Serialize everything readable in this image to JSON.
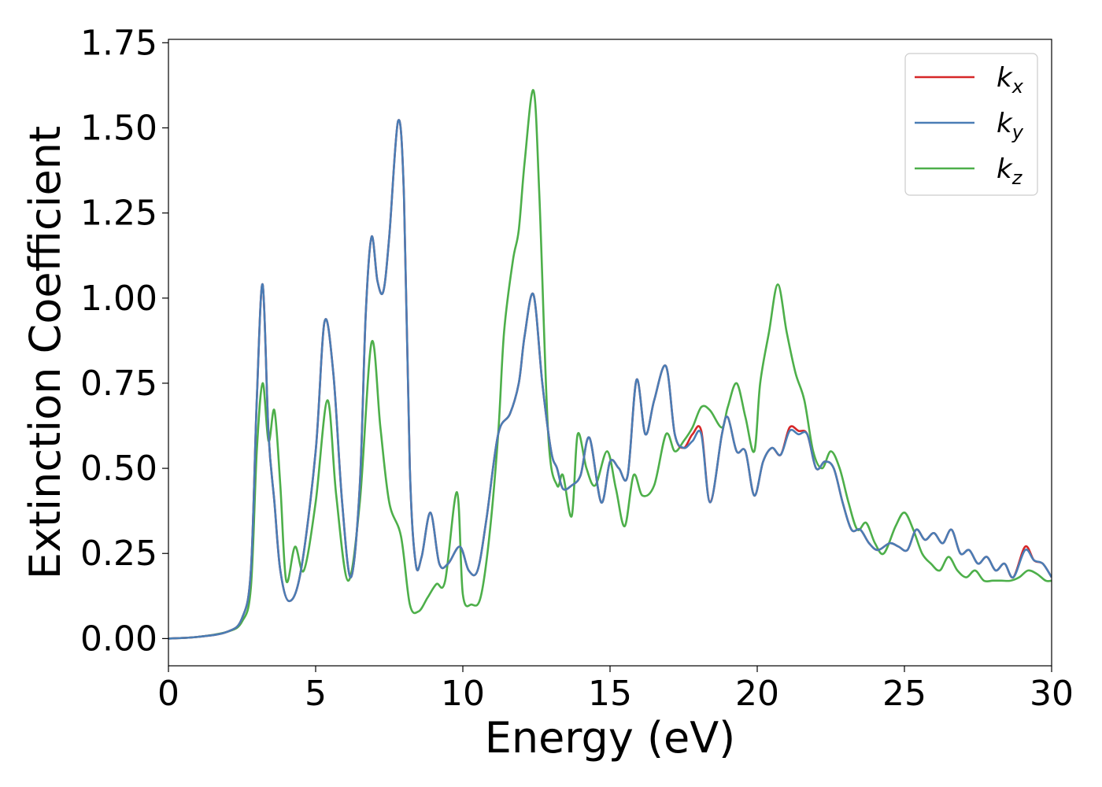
{
  "chart_data": {
    "type": "line",
    "title": "",
    "xlabel": "Energy (eV)",
    "ylabel": "Extinction Coefficient",
    "xlim": [
      0,
      30
    ],
    "ylim": [
      -0.08,
      1.76
    ],
    "xticks": [
      0,
      5,
      10,
      15,
      20,
      25,
      30
    ],
    "yticks": [
      0.0,
      0.25,
      0.5,
      0.75,
      1.0,
      1.25,
      1.5,
      1.75
    ],
    "xtick_labels": [
      "0",
      "5",
      "10",
      "15",
      "20",
      "25",
      "30"
    ],
    "ytick_labels": [
      "0.00",
      "0.25",
      "0.50",
      "0.75",
      "1.00",
      "1.25",
      "1.50",
      "1.75"
    ],
    "grid": false,
    "legend_position": "top-right",
    "series": [
      {
        "name": "k_x",
        "label_base": "k",
        "label_sub": "x",
        "color": "#d62728",
        "x": [
          0,
          1,
          2,
          2.5,
          2.8,
          3.0,
          3.2,
          3.4,
          3.6,
          3.8,
          4.1,
          4.5,
          5.0,
          5.3,
          5.6,
          5.9,
          6.2,
          6.5,
          6.7,
          6.9,
          7.1,
          7.3,
          7.5,
          7.8,
          8.0,
          8.2,
          8.4,
          8.6,
          8.9,
          9.2,
          9.5,
          9.9,
          10.2,
          10.5,
          10.8,
          11.2,
          11.6,
          11.9,
          12.1,
          12.4,
          12.7,
          13.0,
          13.2,
          13.4,
          13.7,
          14.0,
          14.3,
          14.7,
          15.0,
          15.3,
          15.6,
          15.9,
          16.2,
          16.5,
          16.9,
          17.2,
          17.5,
          17.8,
          18.1,
          18.4,
          18.8,
          19.0,
          19.3,
          19.6,
          19.9,
          20.2,
          20.5,
          20.8,
          21.1,
          21.4,
          21.7,
          22.0,
          22.3,
          22.6,
          22.9,
          23.2,
          23.5,
          23.8,
          24.1,
          24.5,
          24.8,
          25.1,
          25.4,
          25.7,
          26.0,
          26.3,
          26.6,
          26.9,
          27.2,
          27.5,
          27.8,
          28.1,
          28.4,
          28.7,
          29.1,
          29.4,
          29.7,
          30
        ],
        "y": [
          0,
          0.005,
          0.02,
          0.06,
          0.2,
          0.7,
          1.04,
          0.6,
          0.4,
          0.2,
          0.11,
          0.2,
          0.55,
          0.93,
          0.78,
          0.4,
          0.18,
          0.45,
          0.95,
          1.18,
          1.05,
          1.02,
          1.18,
          1.52,
          1.3,
          0.5,
          0.22,
          0.24,
          0.37,
          0.22,
          0.22,
          0.27,
          0.2,
          0.2,
          0.35,
          0.6,
          0.66,
          0.75,
          0.89,
          1.01,
          0.75,
          0.55,
          0.5,
          0.44,
          0.45,
          0.48,
          0.59,
          0.4,
          0.52,
          0.5,
          0.48,
          0.76,
          0.6,
          0.7,
          0.8,
          0.6,
          0.56,
          0.6,
          0.61,
          0.4,
          0.6,
          0.65,
          0.55,
          0.55,
          0.42,
          0.52,
          0.56,
          0.54,
          0.62,
          0.61,
          0.6,
          0.5,
          0.52,
          0.5,
          0.4,
          0.32,
          0.32,
          0.28,
          0.26,
          0.28,
          0.27,
          0.26,
          0.32,
          0.29,
          0.31,
          0.28,
          0.32,
          0.25,
          0.26,
          0.22,
          0.24,
          0.2,
          0.22,
          0.18,
          0.27,
          0.23,
          0.22,
          0.18
        ]
      },
      {
        "name": "k_y",
        "label_base": "k",
        "label_sub": "y",
        "color": "#4a7db5",
        "x": [
          0,
          1,
          2,
          2.5,
          2.8,
          3.0,
          3.2,
          3.4,
          3.6,
          3.8,
          4.1,
          4.5,
          5.0,
          5.3,
          5.6,
          5.9,
          6.2,
          6.5,
          6.7,
          6.9,
          7.1,
          7.3,
          7.5,
          7.8,
          8.0,
          8.2,
          8.4,
          8.6,
          8.9,
          9.2,
          9.5,
          9.9,
          10.2,
          10.5,
          10.8,
          11.2,
          11.6,
          11.9,
          12.1,
          12.4,
          12.7,
          13.0,
          13.2,
          13.4,
          13.7,
          14.0,
          14.3,
          14.7,
          15.0,
          15.3,
          15.6,
          15.9,
          16.2,
          16.5,
          16.9,
          17.2,
          17.5,
          17.8,
          18.1,
          18.4,
          18.8,
          19.0,
          19.3,
          19.6,
          19.9,
          20.2,
          20.5,
          20.8,
          21.1,
          21.4,
          21.7,
          22.0,
          22.3,
          22.6,
          22.9,
          23.2,
          23.5,
          23.8,
          24.1,
          24.5,
          24.8,
          25.1,
          25.4,
          25.7,
          26.0,
          26.3,
          26.6,
          26.9,
          27.2,
          27.5,
          27.8,
          28.1,
          28.4,
          28.7,
          29.1,
          29.4,
          29.7,
          30
        ],
        "y": [
          0,
          0.005,
          0.02,
          0.06,
          0.2,
          0.7,
          1.04,
          0.6,
          0.4,
          0.2,
          0.11,
          0.2,
          0.55,
          0.93,
          0.78,
          0.4,
          0.18,
          0.45,
          0.95,
          1.18,
          1.05,
          1.02,
          1.18,
          1.52,
          1.3,
          0.5,
          0.22,
          0.24,
          0.37,
          0.22,
          0.22,
          0.27,
          0.2,
          0.2,
          0.35,
          0.6,
          0.66,
          0.75,
          0.89,
          1.01,
          0.75,
          0.55,
          0.5,
          0.44,
          0.45,
          0.48,
          0.59,
          0.4,
          0.52,
          0.5,
          0.48,
          0.76,
          0.6,
          0.7,
          0.8,
          0.6,
          0.56,
          0.58,
          0.6,
          0.4,
          0.6,
          0.65,
          0.55,
          0.55,
          0.42,
          0.52,
          0.56,
          0.54,
          0.61,
          0.6,
          0.6,
          0.5,
          0.52,
          0.5,
          0.4,
          0.32,
          0.32,
          0.28,
          0.26,
          0.28,
          0.27,
          0.26,
          0.32,
          0.29,
          0.31,
          0.28,
          0.32,
          0.25,
          0.26,
          0.22,
          0.24,
          0.2,
          0.22,
          0.18,
          0.26,
          0.23,
          0.22,
          0.18
        ]
      },
      {
        "name": "k_z",
        "label_base": "k",
        "label_sub": "z",
        "color": "#4daf4a",
        "x": [
          0,
          1,
          2,
          2.5,
          2.8,
          3.0,
          3.2,
          3.4,
          3.6,
          3.8,
          4.0,
          4.3,
          4.6,
          5.0,
          5.4,
          5.7,
          6.1,
          6.5,
          6.9,
          7.2,
          7.5,
          7.9,
          8.2,
          8.5,
          8.8,
          9.1,
          9.4,
          9.8,
          10.0,
          10.3,
          10.6,
          10.9,
          11.2,
          11.4,
          11.7,
          11.9,
          12.1,
          12.4,
          12.6,
          12.9,
          13.2,
          13.4,
          13.7,
          13.9,
          14.2,
          14.5,
          14.9,
          15.2,
          15.5,
          15.8,
          16.1,
          16.5,
          16.9,
          17.2,
          17.5,
          17.8,
          18.1,
          18.4,
          18.8,
          19.0,
          19.3,
          19.6,
          19.9,
          20.1,
          20.4,
          20.7,
          21.0,
          21.3,
          21.6,
          21.9,
          22.2,
          22.5,
          22.8,
          23.1,
          23.4,
          23.7,
          24.0,
          24.3,
          24.7,
          25.0,
          25.3,
          25.6,
          25.9,
          26.2,
          26.5,
          26.8,
          27.1,
          27.4,
          27.7,
          28.0,
          28.3,
          28.6,
          28.9,
          29.2,
          29.5,
          29.8,
          30
        ],
        "y": [
          0,
          0.005,
          0.02,
          0.05,
          0.15,
          0.55,
          0.75,
          0.58,
          0.67,
          0.45,
          0.17,
          0.27,
          0.2,
          0.4,
          0.7,
          0.42,
          0.17,
          0.4,
          0.87,
          0.62,
          0.4,
          0.3,
          0.1,
          0.08,
          0.12,
          0.16,
          0.17,
          0.43,
          0.13,
          0.1,
          0.12,
          0.3,
          0.6,
          0.9,
          1.11,
          1.2,
          1.4,
          1.61,
          1.3,
          0.6,
          0.45,
          0.48,
          0.36,
          0.6,
          0.5,
          0.45,
          0.55,
          0.44,
          0.33,
          0.48,
          0.42,
          0.45,
          0.6,
          0.55,
          0.58,
          0.62,
          0.68,
          0.67,
          0.62,
          0.68,
          0.75,
          0.65,
          0.55,
          0.75,
          0.9,
          1.04,
          0.9,
          0.78,
          0.7,
          0.55,
          0.5,
          0.55,
          0.5,
          0.4,
          0.32,
          0.34,
          0.28,
          0.25,
          0.33,
          0.37,
          0.32,
          0.25,
          0.22,
          0.2,
          0.24,
          0.2,
          0.18,
          0.2,
          0.17,
          0.17,
          0.17,
          0.17,
          0.18,
          0.2,
          0.19,
          0.17,
          0.17
        ]
      }
    ]
  }
}
